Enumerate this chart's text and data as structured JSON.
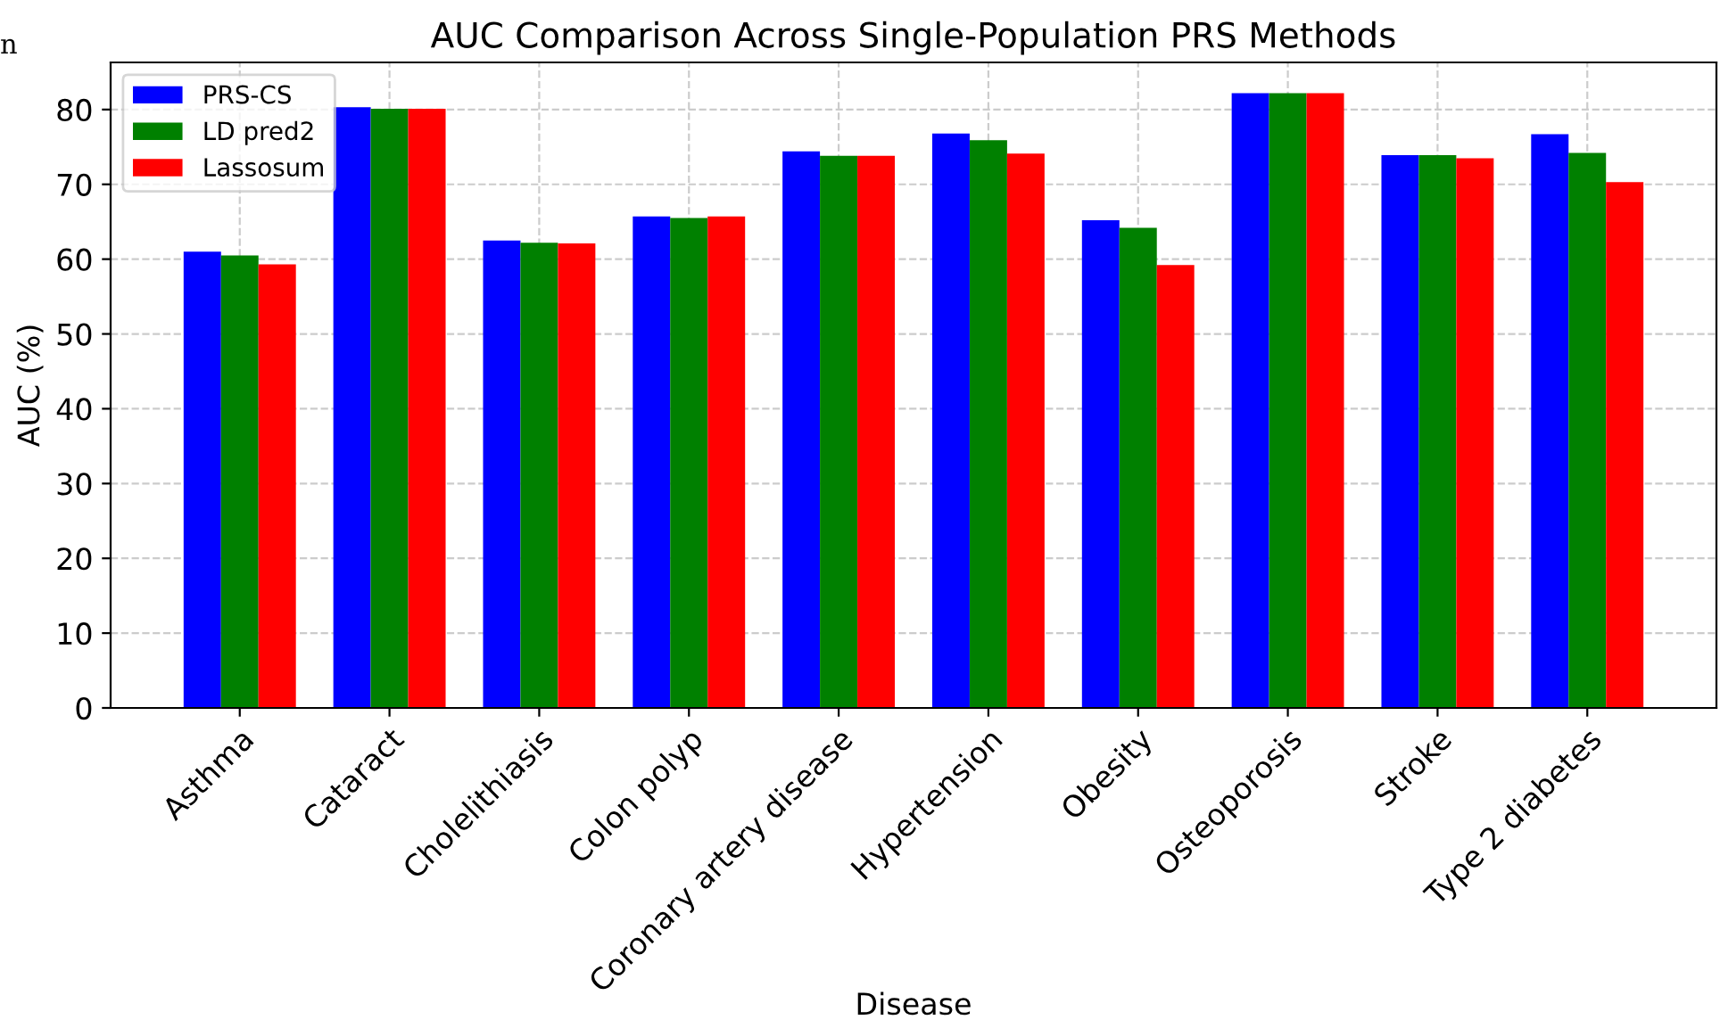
{
  "chart_data": {
    "type": "bar",
    "title": "AUC Comparison Across Single-Population PRS Methods",
    "xlabel": "Disease",
    "ylabel": "AUC (%)",
    "categories": [
      "Asthma",
      "Cataract",
      "Cholelithiasis",
      "Colon polyp",
      "Coronary artery disease",
      "Hypertension",
      "Obesity",
      "Osteoporosis",
      "Stroke",
      "Type 2 diabetes"
    ],
    "series": [
      {
        "name": "PRS-CS",
        "color": "#0000ff",
        "values": [
          61.0,
          80.3,
          62.5,
          65.7,
          74.4,
          76.8,
          65.2,
          82.2,
          73.9,
          76.7
        ]
      },
      {
        "name": "LD pred2",
        "color": "#008000",
        "values": [
          60.5,
          80.1,
          62.2,
          65.5,
          73.8,
          75.9,
          64.2,
          82.2,
          73.9,
          74.2
        ]
      },
      {
        "name": "Lassosum",
        "color": "#ff0000",
        "values": [
          59.3,
          80.1,
          62.1,
          65.7,
          73.8,
          74.1,
          59.2,
          82.2,
          73.5,
          70.3
        ]
      }
    ],
    "ylim": [
      0,
      86.3
    ],
    "yticks": [
      0,
      10,
      20,
      30,
      40,
      50,
      60,
      70,
      80
    ],
    "grid": true,
    "legend": "top left",
    "annotations": [
      "n"
    ]
  }
}
